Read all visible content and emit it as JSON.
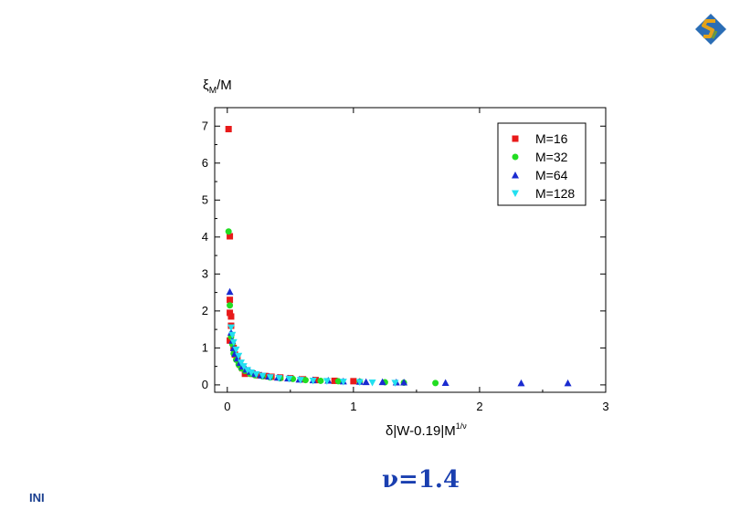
{
  "logo": {
    "icon": "ini-logo-icon",
    "colors": [
      "#2a6db5",
      "#e3a21a",
      "#6a9b3a"
    ]
  },
  "footer": {
    "left_text": "INI",
    "nu_text": "ν=1.4"
  },
  "chart_data": {
    "type": "scatter",
    "ylabel_parts": {
      "main": "ξ",
      "sub": "M",
      "rest": "/M"
    },
    "xlabel_parts": {
      "main": "δ|W-0.19|M",
      "sup": "1/ν"
    },
    "xlim": [
      -0.1,
      3.0
    ],
    "ylim": [
      -0.2,
      7.5
    ],
    "xticks": [
      0,
      1,
      2,
      3
    ],
    "yticks": [
      0,
      1,
      2,
      3,
      4,
      5,
      6,
      7
    ],
    "legend_position": "top-right",
    "series": [
      {
        "name": "M=16",
        "color": "#e81a1a",
        "marker": "square",
        "points": [
          [
            0.01,
            6.92
          ],
          [
            0.02,
            4.02
          ],
          [
            0.02,
            2.3
          ],
          [
            0.02,
            1.95
          ],
          [
            0.03,
            1.85
          ],
          [
            0.03,
            1.6
          ],
          [
            0.02,
            1.2
          ],
          [
            0.05,
            1.0
          ],
          [
            0.06,
            0.82
          ],
          [
            0.08,
            0.7
          ],
          [
            0.1,
            0.55
          ],
          [
            0.12,
            0.45
          ],
          [
            0.15,
            0.38
          ],
          [
            0.14,
            0.3
          ],
          [
            0.2,
            0.3
          ],
          [
            0.25,
            0.26
          ],
          [
            0.3,
            0.24
          ],
          [
            0.35,
            0.22
          ],
          [
            0.42,
            0.2
          ],
          [
            0.5,
            0.18
          ],
          [
            0.6,
            0.15
          ],
          [
            0.7,
            0.13
          ],
          [
            0.85,
            0.11
          ],
          [
            1.0,
            0.1
          ]
        ]
      },
      {
        "name": "M=32",
        "color": "#22dd22",
        "marker": "circle",
        "points": [
          [
            0.01,
            4.15
          ],
          [
            0.02,
            2.15
          ],
          [
            0.03,
            1.3
          ],
          [
            0.04,
            1.1
          ],
          [
            0.05,
            0.85
          ],
          [
            0.07,
            0.68
          ],
          [
            0.09,
            0.55
          ],
          [
            0.11,
            0.45
          ],
          [
            0.14,
            0.38
          ],
          [
            0.18,
            0.3
          ],
          [
            0.22,
            0.26
          ],
          [
            0.28,
            0.23
          ],
          [
            0.34,
            0.2
          ],
          [
            0.42,
            0.18
          ],
          [
            0.52,
            0.16
          ],
          [
            0.62,
            0.13
          ],
          [
            0.74,
            0.11
          ],
          [
            0.88,
            0.1
          ],
          [
            1.05,
            0.09
          ],
          [
            1.25,
            0.07
          ],
          [
            1.4,
            0.06
          ],
          [
            1.65,
            0.05
          ]
        ]
      },
      {
        "name": "M=64",
        "color": "#1a2bd0",
        "marker": "triangle-up",
        "points": [
          [
            0.02,
            2.52
          ],
          [
            0.03,
            1.42
          ],
          [
            0.04,
            1.2
          ],
          [
            0.05,
            1.0
          ],
          [
            0.06,
            0.85
          ],
          [
            0.08,
            0.72
          ],
          [
            0.1,
            0.6
          ],
          [
            0.12,
            0.5
          ],
          [
            0.15,
            0.42
          ],
          [
            0.18,
            0.36
          ],
          [
            0.22,
            0.3
          ],
          [
            0.27,
            0.26
          ],
          [
            0.33,
            0.23
          ],
          [
            0.4,
            0.2
          ],
          [
            0.48,
            0.18
          ],
          [
            0.57,
            0.15
          ],
          [
            0.68,
            0.13
          ],
          [
            0.8,
            0.12
          ],
          [
            0.92,
            0.1
          ],
          [
            1.05,
            0.09
          ],
          [
            1.1,
            0.08
          ],
          [
            1.23,
            0.08
          ],
          [
            1.34,
            0.07
          ],
          [
            1.4,
            0.07
          ],
          [
            1.73,
            0.06
          ],
          [
            2.33,
            0.05
          ],
          [
            2.7,
            0.05
          ]
        ]
      },
      {
        "name": "M=128",
        "color": "#22e0f0",
        "marker": "triangle-down",
        "points": [
          [
            0.03,
            1.55
          ],
          [
            0.04,
            1.35
          ],
          [
            0.05,
            1.15
          ],
          [
            0.07,
            0.95
          ],
          [
            0.09,
            0.78
          ],
          [
            0.11,
            0.6
          ],
          [
            0.13,
            0.5
          ],
          [
            0.16,
            0.4
          ],
          [
            0.19,
            0.33
          ],
          [
            0.23,
            0.28
          ],
          [
            0.28,
            0.24
          ],
          [
            0.34,
            0.2
          ],
          [
            0.41,
            0.18
          ],
          [
            0.49,
            0.16
          ],
          [
            0.58,
            0.13
          ],
          [
            0.68,
            0.11
          ],
          [
            0.79,
            0.1
          ],
          [
            0.92,
            0.08
          ],
          [
            1.05,
            0.07
          ],
          [
            1.15,
            0.06
          ],
          [
            1.33,
            0.05
          ]
        ]
      }
    ]
  }
}
